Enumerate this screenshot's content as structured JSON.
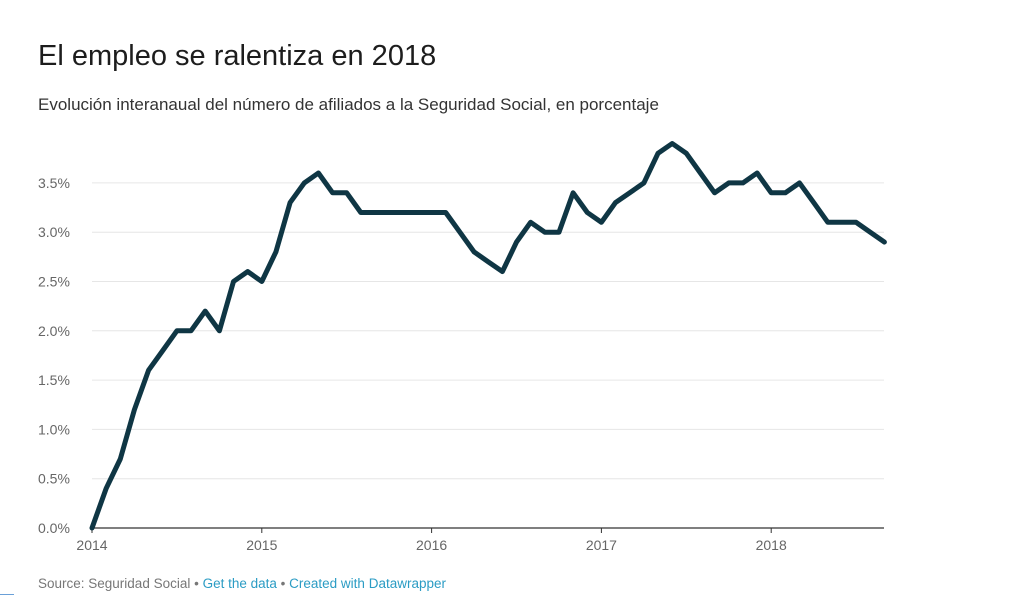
{
  "title": "El empleo se ralentiza en 2018",
  "subtitle": "Evolución interanaual del número de afiliados a la Seguridad Social, en porcentaje",
  "footer": {
    "source": "Source: Seguridad Social",
    "get_data": "Get the data",
    "created_with": "Created with Datawrapper",
    "link_color": "#2b9cc4"
  },
  "chart_data": {
    "type": "line",
    "title": "El empleo se ralentiza en 2018",
    "subtitle": "Evolución interanaual del número de afiliados a la Seguridad Social, en porcentaje",
    "xlabel": "",
    "ylabel": "",
    "xlim": [
      2014,
      2018.6667
    ],
    "ylim": [
      0,
      3.9
    ],
    "y_ticks": [
      0,
      0.5,
      1.0,
      1.5,
      2.0,
      2.5,
      3.0,
      3.5
    ],
    "y_tick_labels": [
      "0.0%",
      "0.5%",
      "1.0%",
      "1.5%",
      "2.0%",
      "2.5%",
      "3.0%",
      "3.5%"
    ],
    "x_ticks": [
      2014,
      2015,
      2016,
      2017,
      2018
    ],
    "x_tick_labels": [
      "2014",
      "2015",
      "2016",
      "2017",
      "2018"
    ],
    "grid": true,
    "legend": "none",
    "line_color": "#0f3644",
    "series": [
      {
        "x": [
          2014.0,
          2014.0833,
          2014.1667,
          2014.25,
          2014.3333,
          2014.4167,
          2014.5,
          2014.5833,
          2014.6667,
          2014.75,
          2014.8333,
          2014.9167,
          2015.0,
          2015.0833,
          2015.1667,
          2015.25,
          2015.3333,
          2015.4167,
          2015.5,
          2015.5833,
          2015.6667,
          2015.75,
          2015.8333,
          2015.9167,
          2016.0,
          2016.0833,
          2016.1667,
          2016.25,
          2016.3333,
          2016.4167,
          2016.5,
          2016.5833,
          2016.6667,
          2016.75,
          2016.8333,
          2016.9167,
          2017.0,
          2017.0833,
          2017.1667,
          2017.25,
          2017.3333,
          2017.4167,
          2017.5,
          2017.5833,
          2017.6667,
          2017.75,
          2017.8333,
          2017.9167,
          2018.0,
          2018.0833,
          2018.1667,
          2018.25,
          2018.3333,
          2018.4167,
          2018.5,
          2018.5833,
          2018.6667
        ],
        "values": [
          0.0,
          0.4,
          0.7,
          1.2,
          1.6,
          1.8,
          2.0,
          2.0,
          2.2,
          2.0,
          2.5,
          2.6,
          2.5,
          2.8,
          3.3,
          3.5,
          3.6,
          3.4,
          3.4,
          3.2,
          3.2,
          3.2,
          3.2,
          3.2,
          3.2,
          3.2,
          3.0,
          2.8,
          2.7,
          2.6,
          2.9,
          3.1,
          3.0,
          3.0,
          3.4,
          3.2,
          3.1,
          3.3,
          3.4,
          3.5,
          3.8,
          3.9,
          3.8,
          3.6,
          3.4,
          3.5,
          3.5,
          3.6,
          3.4,
          3.4,
          3.5,
          3.3,
          3.1,
          3.1,
          3.1,
          3.0,
          2.9
        ]
      }
    ]
  }
}
